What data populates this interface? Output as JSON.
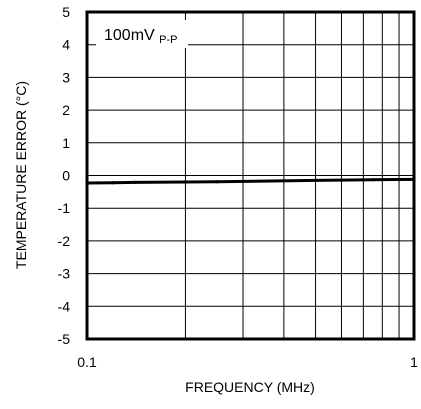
{
  "chart_data": {
    "type": "line",
    "title": "",
    "xlabel": "FREQUENCY (MHz)",
    "ylabel": "TEMPERATURE ERROR (°C)",
    "xscale": "log",
    "xlim": [
      0.1,
      1
    ],
    "ylim": [
      -5,
      5
    ],
    "x_ticks": [
      0.1,
      1
    ],
    "x_tick_labels": [
      "0.1",
      "1"
    ],
    "y_ticks": [
      5,
      4,
      3,
      2,
      1,
      0,
      -1,
      -2,
      -3,
      -4,
      -5
    ],
    "y_tick_labels": [
      "5",
      "4",
      "3",
      "2",
      "1",
      "0",
      "-1",
      "-2",
      "-3",
      "-4",
      "-5"
    ],
    "x_minor_ticks": [
      0.2,
      0.3,
      0.4,
      0.5,
      0.6,
      0.7,
      0.8,
      0.9
    ],
    "grid": true,
    "annotation": {
      "main": "100mV",
      "sub": "P-P"
    },
    "series": [
      {
        "color": "#000000",
        "x": [
          0.1,
          0.12,
          0.14,
          0.2,
          0.25,
          0.5,
          0.75,
          1.0
        ],
        "y": [
          -0.23,
          -0.22,
          -0.21,
          -0.2,
          -0.19,
          -0.15,
          -0.13,
          -0.12
        ]
      }
    ]
  }
}
